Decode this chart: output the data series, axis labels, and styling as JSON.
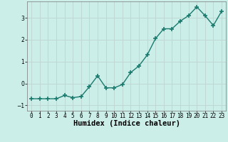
{
  "x": [
    0,
    1,
    2,
    3,
    4,
    5,
    6,
    7,
    8,
    9,
    10,
    11,
    12,
    13,
    14,
    15,
    16,
    17,
    18,
    19,
    20,
    21,
    22,
    23
  ],
  "y": [
    -0.7,
    -0.7,
    -0.7,
    -0.7,
    -0.55,
    -0.65,
    -0.6,
    -0.15,
    0.35,
    -0.2,
    -0.2,
    -0.05,
    0.5,
    0.8,
    1.3,
    2.05,
    2.5,
    2.5,
    2.85,
    3.1,
    3.5,
    3.1,
    2.65,
    3.3
  ],
  "line_color": "#1a7a6e",
  "marker": "+",
  "marker_size": 4,
  "linewidth": 1.0,
  "xlabel": "Humidex (Indice chaleur)",
  "ylabel": "",
  "xlim": [
    -0.5,
    23.5
  ],
  "ylim": [
    -1.25,
    3.75
  ],
  "yticks": [
    -1,
    0,
    1,
    2,
    3
  ],
  "xticks": [
    0,
    1,
    2,
    3,
    4,
    5,
    6,
    7,
    8,
    9,
    10,
    11,
    12,
    13,
    14,
    15,
    16,
    17,
    18,
    19,
    20,
    21,
    22,
    23
  ],
  "bg_color": "#cceee8",
  "grid_color": "#c0d8d4",
  "tick_fontsize": 5.5,
  "xlabel_fontsize": 7.5,
  "xlabel_fontweight": "bold"
}
